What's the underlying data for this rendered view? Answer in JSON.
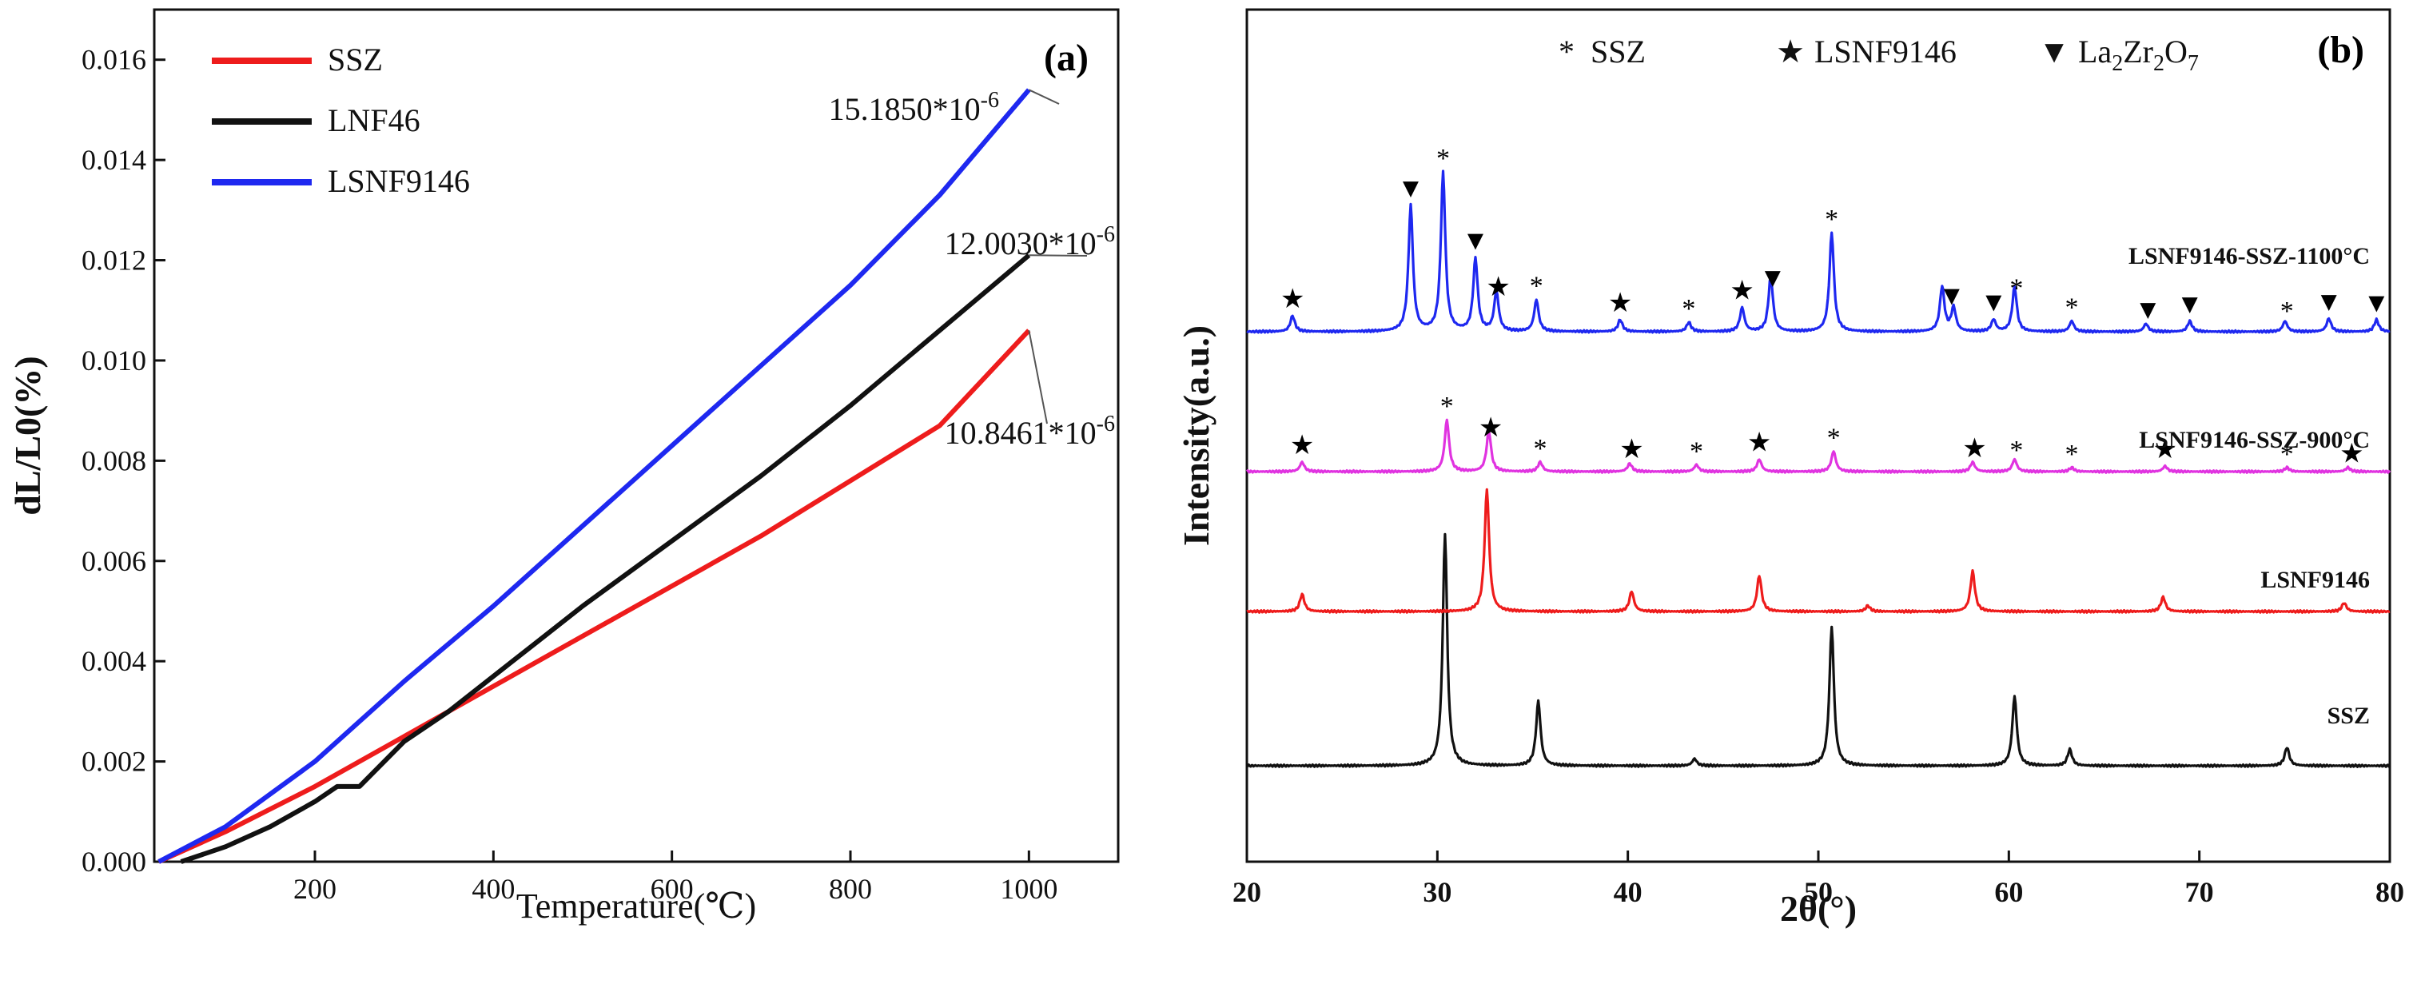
{
  "chart_data": [
    {
      "panel": "(a)",
      "type": "line",
      "xlabel": "Temperature(℃)",
      "ylabel": "dL/L0(%)",
      "xlim": [
        20,
        1100
      ],
      "ylim": [
        0,
        0.017
      ],
      "xticks": [
        "200",
        "400",
        "600",
        "800",
        "1000"
      ],
      "yticks": [
        "0.000",
        "0.002",
        "0.004",
        "0.006",
        "0.008",
        "0.010",
        "0.012",
        "0.014",
        "0.016"
      ],
      "series": [
        {
          "name": "SSZ",
          "color": "#ee1c1c",
          "x": [
            25,
            100,
            200,
            300,
            400,
            500,
            600,
            700,
            800,
            900,
            1000
          ],
          "y": [
            0,
            0.0006,
            0.0015,
            0.0025,
            0.0035,
            0.0045,
            0.0055,
            0.0065,
            0.0076,
            0.0087,
            0.0106
          ]
        },
        {
          "name": "LNF46",
          "color": "#111111",
          "x": [
            50,
            100,
            150,
            200,
            225,
            250,
            300,
            350,
            400,
            450,
            500,
            600,
            700,
            800,
            900,
            1000
          ],
          "y": [
            0,
            0.0003,
            0.0007,
            0.0012,
            0.0015,
            0.0015,
            0.0024,
            0.003,
            0.0037,
            0.0044,
            0.0051,
            0.0064,
            0.0077,
            0.0091,
            0.0106,
            0.0121
          ]
        },
        {
          "name": "LSNF9146",
          "color": "#1e28f0",
          "x": [
            25,
            100,
            200,
            300,
            400,
            500,
            600,
            700,
            800,
            900,
            1000
          ],
          "y": [
            0,
            0.0007,
            0.002,
            0.0036,
            0.0051,
            0.0067,
            0.0083,
            0.0099,
            0.0115,
            0.0133,
            0.0154
          ]
        }
      ],
      "annotations": [
        {
          "text": "15.1850*10",
          "sup": "-6",
          "series": "LSNF9146"
        },
        {
          "text": "12.0030*10",
          "sup": "-6",
          "series": "LNF46"
        },
        {
          "text": "10.8461*10",
          "sup": "-6",
          "series": "SSZ"
        }
      ]
    },
    {
      "panel": "(b)",
      "type": "line",
      "xlabel": "2θ(°)",
      "ylabel": "Intensity(a.u.)",
      "xlim": [
        20,
        80
      ],
      "xticks": [
        "20",
        "30",
        "40",
        "50",
        "60",
        "70",
        "80"
      ],
      "legend": [
        {
          "symbol": "*",
          "label": "SSZ"
        },
        {
          "symbol": "★",
          "label": "LSNF9146"
        },
        {
          "symbol": "▼",
          "label": "La",
          "sub1": "2",
          "mid": "Zr",
          "sub2": "2",
          "end": "O",
          "sub3": "7"
        }
      ],
      "series": [
        {
          "name": "SSZ",
          "color": "#111111",
          "offset": 0,
          "peaks": [
            [
              30.4,
              100
            ],
            [
              35.3,
              28
            ],
            [
              43.5,
              3
            ],
            [
              50.7,
              60
            ],
            [
              60.3,
              30
            ],
            [
              63.2,
              7
            ],
            [
              74.6,
              8
            ]
          ]
        },
        {
          "name": "LSNF9146",
          "color": "#ee1c1c",
          "offset": 1,
          "peaks": [
            [
              22.9,
              12
            ],
            [
              32.6,
              85
            ],
            [
              40.2,
              14
            ],
            [
              46.9,
              25
            ],
            [
              52.6,
              4
            ],
            [
              58.1,
              28
            ],
            [
              68.1,
              10
            ],
            [
              77.6,
              6
            ]
          ]
        },
        {
          "name": "LSNF9146-SSZ-900°C",
          "color": "#e033e0",
          "offset": 2,
          "peaks": [
            [
              22.9,
              7
            ],
            [
              30.5,
              38
            ],
            [
              32.7,
              30
            ],
            [
              35.4,
              7
            ],
            [
              40.1,
              6
            ],
            [
              43.6,
              5
            ],
            [
              46.9,
              9
            ],
            [
              50.8,
              15
            ],
            [
              58.1,
              7
            ],
            [
              60.3,
              9
            ],
            [
              63.3,
              3
            ],
            [
              68.2,
              4
            ],
            [
              74.6,
              3
            ],
            [
              77.8,
              3
            ]
          ]
        },
        {
          "name": "LSNF9146-SSZ-1100°C",
          "color": "#1e28f0",
          "offset": 3,
          "peaks": [
            [
              22.4,
              12
            ],
            [
              28.6,
              95
            ],
            [
              30.3,
              120
            ],
            [
              32.0,
              55
            ],
            [
              33.1,
              30
            ],
            [
              35.2,
              24
            ],
            [
              39.6,
              9
            ],
            [
              43.2,
              7
            ],
            [
              46.0,
              18
            ],
            [
              47.5,
              42
            ],
            [
              50.7,
              75
            ],
            [
              56.5,
              34
            ],
            [
              57.1,
              18
            ],
            [
              59.2,
              9
            ],
            [
              60.3,
              34
            ],
            [
              63.3,
              8
            ],
            [
              67.2,
              6
            ],
            [
              69.5,
              8
            ],
            [
              74.5,
              8
            ],
            [
              76.8,
              10
            ],
            [
              79.3,
              9
            ]
          ]
        }
      ],
      "peak_markers": [
        {
          "series": "LSNF9146-SSZ-1100°C",
          "marks": [
            [
              22.4,
              "★"
            ],
            [
              28.6,
              "▼"
            ],
            [
              30.3,
              "*"
            ],
            [
              32.0,
              "▼"
            ],
            [
              33.2,
              "★"
            ],
            [
              35.2,
              "*"
            ],
            [
              39.6,
              "★"
            ],
            [
              43.2,
              "*"
            ],
            [
              46.0,
              "★"
            ],
            [
              47.6,
              "▼"
            ],
            [
              50.7,
              "*"
            ],
            [
              57.0,
              "▼"
            ],
            [
              59.2,
              "▼"
            ],
            [
              60.4,
              "*"
            ],
            [
              63.3,
              "*"
            ],
            [
              67.3,
              "▼"
            ],
            [
              69.5,
              "▼"
            ],
            [
              74.6,
              "*"
            ],
            [
              76.8,
              "▼"
            ],
            [
              79.3,
              "▼"
            ]
          ]
        },
        {
          "series": "LSNF9146-SSZ-900°C",
          "marks": [
            [
              22.9,
              "★"
            ],
            [
              30.5,
              "*"
            ],
            [
              32.8,
              "★"
            ],
            [
              35.4,
              "*"
            ],
            [
              40.2,
              "★"
            ],
            [
              43.6,
              "*"
            ],
            [
              46.9,
              "★"
            ],
            [
              50.8,
              "*"
            ],
            [
              58.2,
              "★"
            ],
            [
              60.4,
              "*"
            ],
            [
              63.3,
              "*"
            ],
            [
              68.2,
              "★"
            ],
            [
              74.6,
              "*"
            ],
            [
              78.0,
              "★"
            ]
          ]
        }
      ]
    }
  ]
}
